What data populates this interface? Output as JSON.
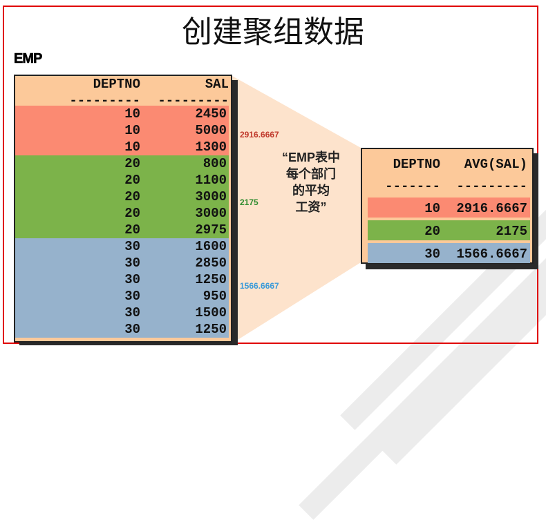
{
  "title": "创建聚组数据",
  "table_name": "EMP",
  "left_table": {
    "headers": [
      "DEPTNO",
      "SAL"
    ],
    "dashes": [
      "---------",
      "---------"
    ],
    "rows": [
      [
        "10",
        "2450"
      ],
      [
        "10",
        "5000"
      ],
      [
        "10",
        "1300"
      ],
      [
        "20",
        "800"
      ],
      [
        "20",
        "1100"
      ],
      [
        "20",
        "3000"
      ],
      [
        "20",
        "3000"
      ],
      [
        "20",
        "2975"
      ],
      [
        "30",
        "1600"
      ],
      [
        "30",
        "2850"
      ],
      [
        "30",
        "1250"
      ],
      [
        "30",
        "950"
      ],
      [
        "30",
        "1500"
      ],
      [
        "30",
        "1250"
      ]
    ]
  },
  "annotations": [
    {
      "text": "2916.6667",
      "color": "#c0392b"
    },
    {
      "text": "2175",
      "color": "#2e8b2e"
    },
    {
      "text": "1566.6667",
      "color": "#3a9ad9"
    }
  ],
  "caption": [
    "“EMP表中",
    "每个部门",
    "的平均",
    "工资”"
  ],
  "right_table": {
    "headers": [
      "DEPTNO",
      "AVG(SAL)"
    ],
    "dashes": [
      "-------",
      "---------"
    ],
    "rows": [
      [
        "10",
        "2916.6667"
      ],
      [
        "20",
        "2175"
      ],
      [
        "30",
        "1566.6667"
      ]
    ]
  },
  "colors": {
    "dept10": "#fb8a72",
    "dept20": "#7cb34a",
    "dept30": "#96b2cc",
    "table_bg": "#fcc99a",
    "frame": "#e00000"
  }
}
